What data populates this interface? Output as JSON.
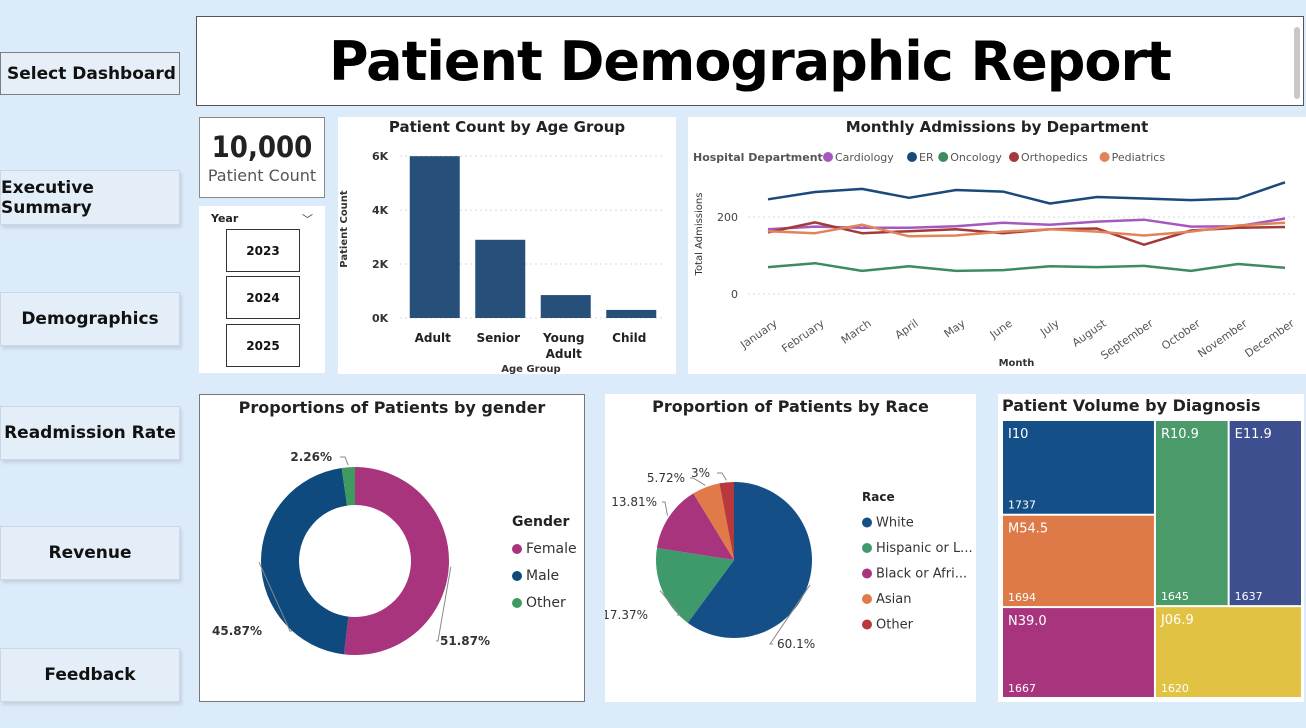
{
  "nav": {
    "select_label": "Select Dashboard",
    "items": [
      "Executive Summary",
      "Demographics",
      "Readmission Rate",
      "Revenue",
      "Feedback"
    ]
  },
  "header": {
    "title": "Patient Demographic Report"
  },
  "kpi": {
    "value": "10,000",
    "label": "Patient Count"
  },
  "slicer": {
    "label": "Year",
    "years": [
      "2023",
      "2024",
      "2025"
    ]
  },
  "chart_data": [
    {
      "type": "bar",
      "title": "Patient Count by Age Group",
      "categories": [
        "Adult",
        "Senior",
        "Young Adult",
        "Child"
      ],
      "values": [
        6000,
        2900,
        850,
        300
      ],
      "xlabel": "Age Group",
      "ylabel": "Patient Count",
      "yticks": [
        "0K",
        "2K",
        "4K",
        "6K"
      ],
      "ylim": [
        0,
        6600
      ],
      "color": "#264f79"
    },
    {
      "type": "line",
      "title": "Monthly Admissions by Department",
      "legend_title": "Hospital Department",
      "xlabel": "Month",
      "ylabel": "Total Admissions",
      "x": [
        "January",
        "February",
        "March",
        "April",
        "May",
        "June",
        "July",
        "August",
        "September",
        "October",
        "November",
        "December"
      ],
      "yticks": [
        "0",
        "200"
      ],
      "ylim": [
        0,
        310
      ],
      "series": [
        {
          "name": "Cardiology",
          "color": "#a559c0",
          "values": [
            168,
            175,
            172,
            172,
            176,
            185,
            180,
            188,
            193,
            175,
            176,
            196
          ]
        },
        {
          "name": "ER",
          "color": "#1a4a7a",
          "values": [
            246,
            265,
            273,
            250,
            270,
            266,
            235,
            252,
            248,
            244,
            248,
            290
          ]
        },
        {
          "name": "Oncology",
          "color": "#3d8b5e",
          "values": [
            70,
            80,
            60,
            72,
            60,
            62,
            72,
            70,
            73,
            60,
            78,
            68
          ]
        },
        {
          "name": "Orthopedics",
          "color": "#a33a3a",
          "values": [
            160,
            186,
            158,
            163,
            168,
            158,
            168,
            170,
            128,
            165,
            172,
            174
          ]
        },
        {
          "name": "Pediatrics",
          "color": "#e0855a",
          "values": [
            163,
            158,
            180,
            150,
            152,
            162,
            168,
            162,
            152,
            162,
            178,
            185
          ]
        }
      ]
    },
    {
      "type": "pie",
      "title": "Proportions of Patients by gender",
      "legend_title": "Gender",
      "labels": [
        "Female",
        "Male",
        "Other"
      ],
      "values": [
        51.87,
        45.87,
        2.26
      ],
      "value_labels": [
        "51.87%",
        "45.87%",
        "2.26%"
      ],
      "colors": [
        "#a8347e",
        "#0f4a7e",
        "#3e9a5e"
      ],
      "donut": true
    },
    {
      "type": "pie",
      "title": "Proportion of Patients by Race",
      "legend_title": "Race",
      "labels": [
        "White",
        "Hispanic or L...",
        "Black or Afri...",
        "Asian",
        "Other"
      ],
      "values": [
        60.1,
        17.37,
        13.81,
        5.72,
        3
      ],
      "value_labels": [
        "60.1%",
        "17.37%",
        "13.81%",
        "5.72%",
        "3%"
      ],
      "colors": [
        "#154f88",
        "#3e9a6a",
        "#a8347e",
        "#e07a48",
        "#b8383e"
      ]
    },
    {
      "type": "treemap",
      "title": "Patient Volume by Diagnosis",
      "labels": [
        "I10",
        "M54.5",
        "R10.9",
        "E11.9",
        "N39.0",
        "J06.9"
      ],
      "values": [
        1737,
        1694,
        1645,
        1637,
        1667,
        1620
      ],
      "colors": [
        "#154f88",
        "#dd7a48",
        "#4a9a6a",
        "#3d4f8e",
        "#a8347e",
        "#e1c242"
      ]
    }
  ]
}
